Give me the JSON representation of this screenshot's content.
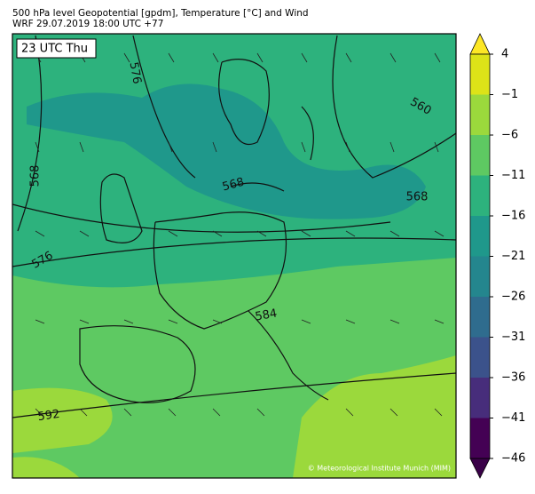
{
  "header": {
    "title": "500 hPa level Geopotential [gpdm], Temperature [°C] and Wind",
    "subtitle": "WRF 29.07.2019 18:00 UTC +77"
  },
  "map": {
    "time_label": "23 UTC Thu",
    "contour_labels": [
      "576",
      "568",
      "560",
      "568",
      "568",
      "576",
      "584",
      "592"
    ],
    "credit": "© Meteorological Institute Munich (MIM)"
  },
  "colorbar": {
    "ticks": [
      "4",
      "−1",
      "−6",
      "−11",
      "−16",
      "−21",
      "−26",
      "−31",
      "−36",
      "−41",
      "−46"
    ],
    "colors": [
      "#fde725",
      "#dde318",
      "#9bd93c",
      "#5ec962",
      "#2db27d",
      "#1f988b",
      "#24868e",
      "#2f6c8e",
      "#3b528b",
      "#472d7b",
      "#440154",
      "#3a0148"
    ]
  }
}
